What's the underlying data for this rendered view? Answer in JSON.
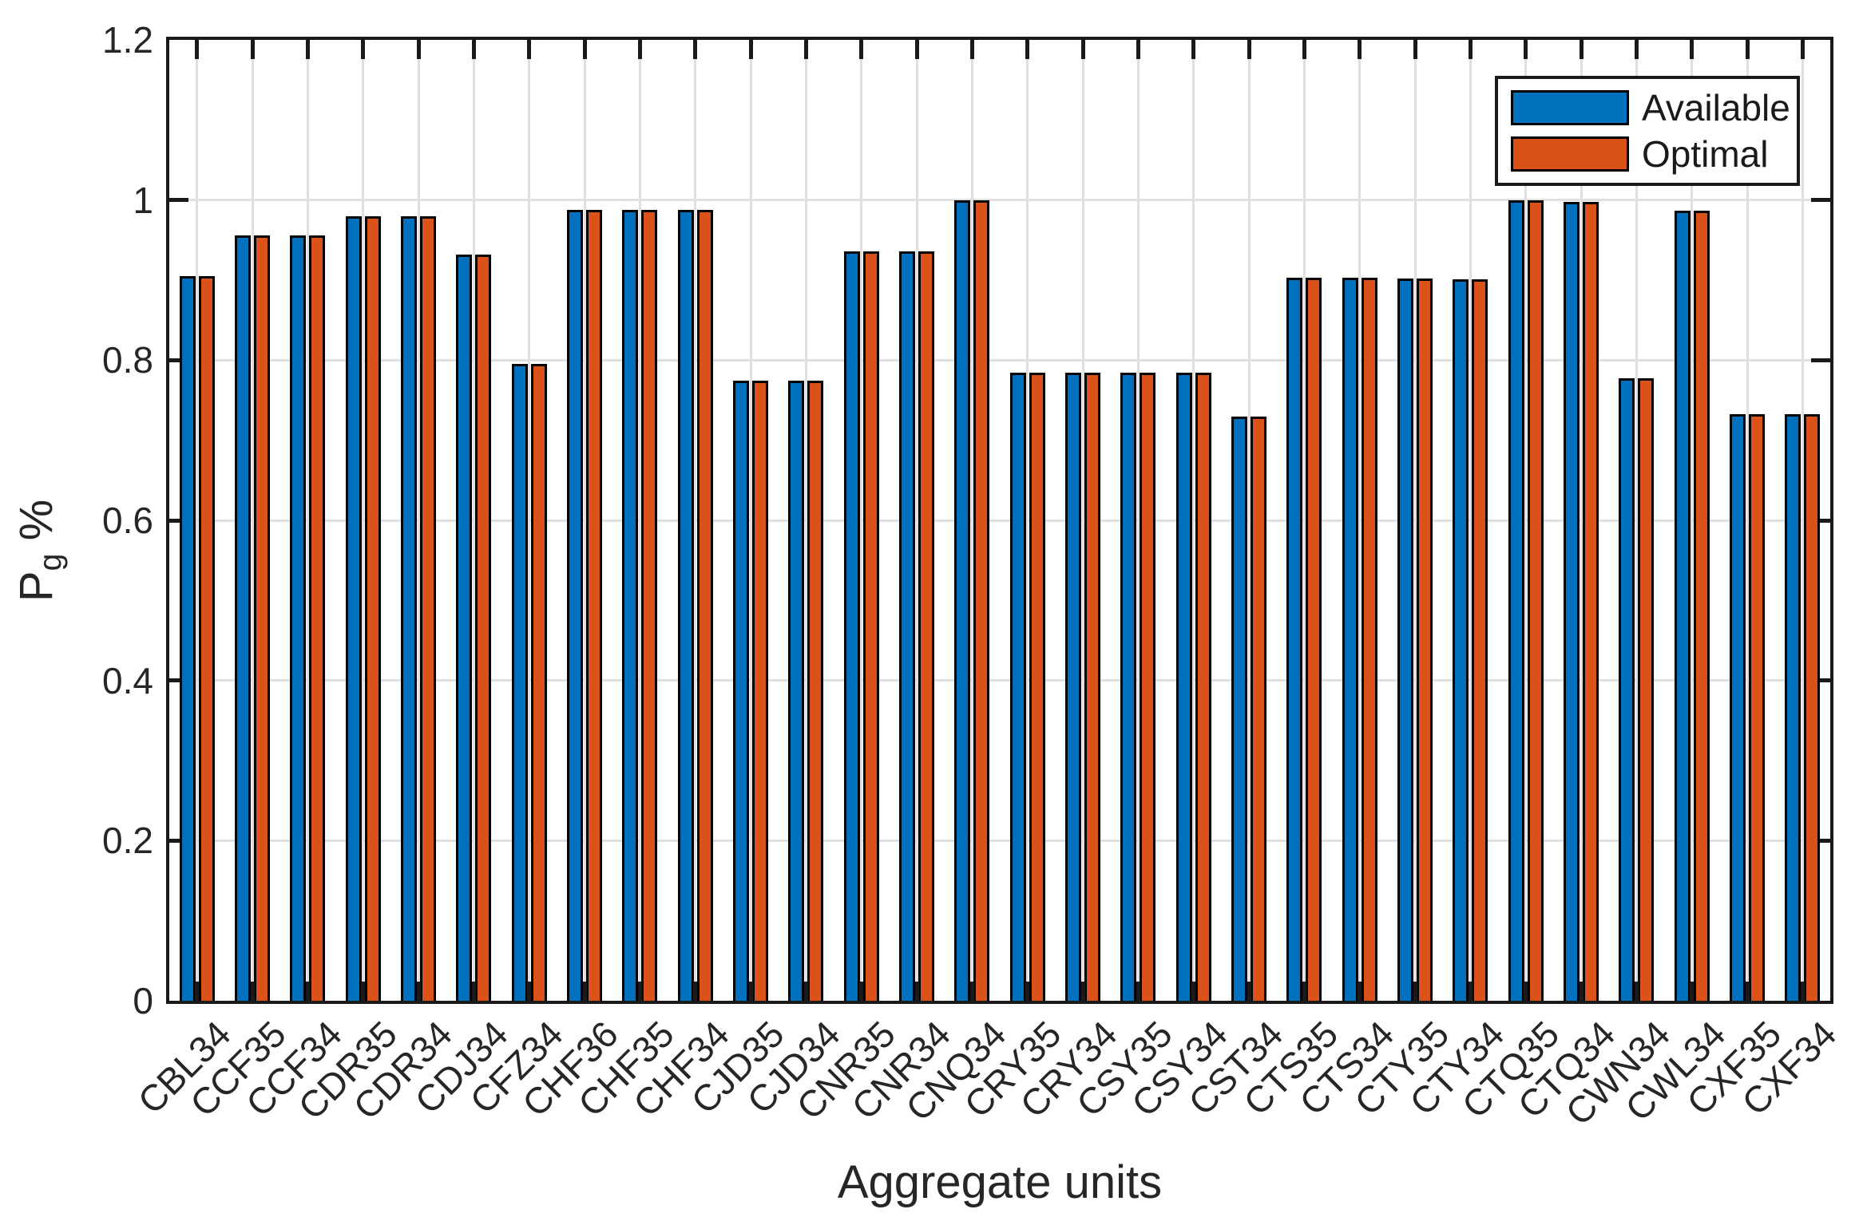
{
  "chart_data": {
    "type": "bar",
    "title": "",
    "xlabel": "Aggregate units",
    "ylabel": {
      "base": "P",
      "sub": "g",
      "suffix": " %"
    },
    "ylim": [
      0,
      1.2
    ],
    "yticks": {
      "values": [
        0,
        0.2,
        0.4,
        0.6,
        0.8,
        1,
        1.2
      ],
      "labels": [
        "0",
        "0.2",
        "0.4",
        "0.6",
        "0.8",
        "1",
        "1.2"
      ]
    },
    "grid": true,
    "legend_position": "northeast",
    "categories": [
      "CBL34",
      "CCF35",
      "CCF34",
      "CDR35",
      "CDR34",
      "CDJ34",
      "CFZ34",
      "CHF36",
      "CHF35",
      "CHF34",
      "CJD35",
      "CJD34",
      "CNR35",
      "CNR34",
      "CNQ34",
      "CRY35",
      "CRY34",
      "CSY35",
      "CSY34",
      "CST34",
      "CTS35",
      "CTS34",
      "CTY35",
      "CTY34",
      "CTQ35",
      "CTQ34",
      "CWN34",
      "CWL34",
      "CXF35",
      "CXF34"
    ],
    "series": [
      {
        "name": "Available",
        "color": "#0072BD",
        "values": [
          0.905,
          0.956,
          0.956,
          0.98,
          0.98,
          0.932,
          0.795,
          0.988,
          0.988,
          0.988,
          0.774,
          0.774,
          0.936,
          0.936,
          1.0,
          0.784,
          0.784,
          0.784,
          0.784,
          0.73,
          0.903,
          0.903,
          0.902,
          0.901,
          1.0,
          0.998,
          0.777,
          0.987,
          0.733,
          0.733
        ]
      },
      {
        "name": "Optimal",
        "color": "#D95319",
        "values": [
          0.905,
          0.956,
          0.956,
          0.98,
          0.98,
          0.932,
          0.795,
          0.988,
          0.988,
          0.988,
          0.774,
          0.774,
          0.936,
          0.936,
          1.0,
          0.784,
          0.784,
          0.784,
          0.784,
          0.73,
          0.903,
          0.903,
          0.902,
          0.901,
          1.0,
          0.998,
          0.777,
          0.987,
          0.733,
          0.733
        ]
      }
    ],
    "colors": {
      "bar_edge": "#000000",
      "grid": "#E0E0E0",
      "axis": "#1A1A1A",
      "text": "#262626",
      "background": "#FFFFFF"
    }
  }
}
